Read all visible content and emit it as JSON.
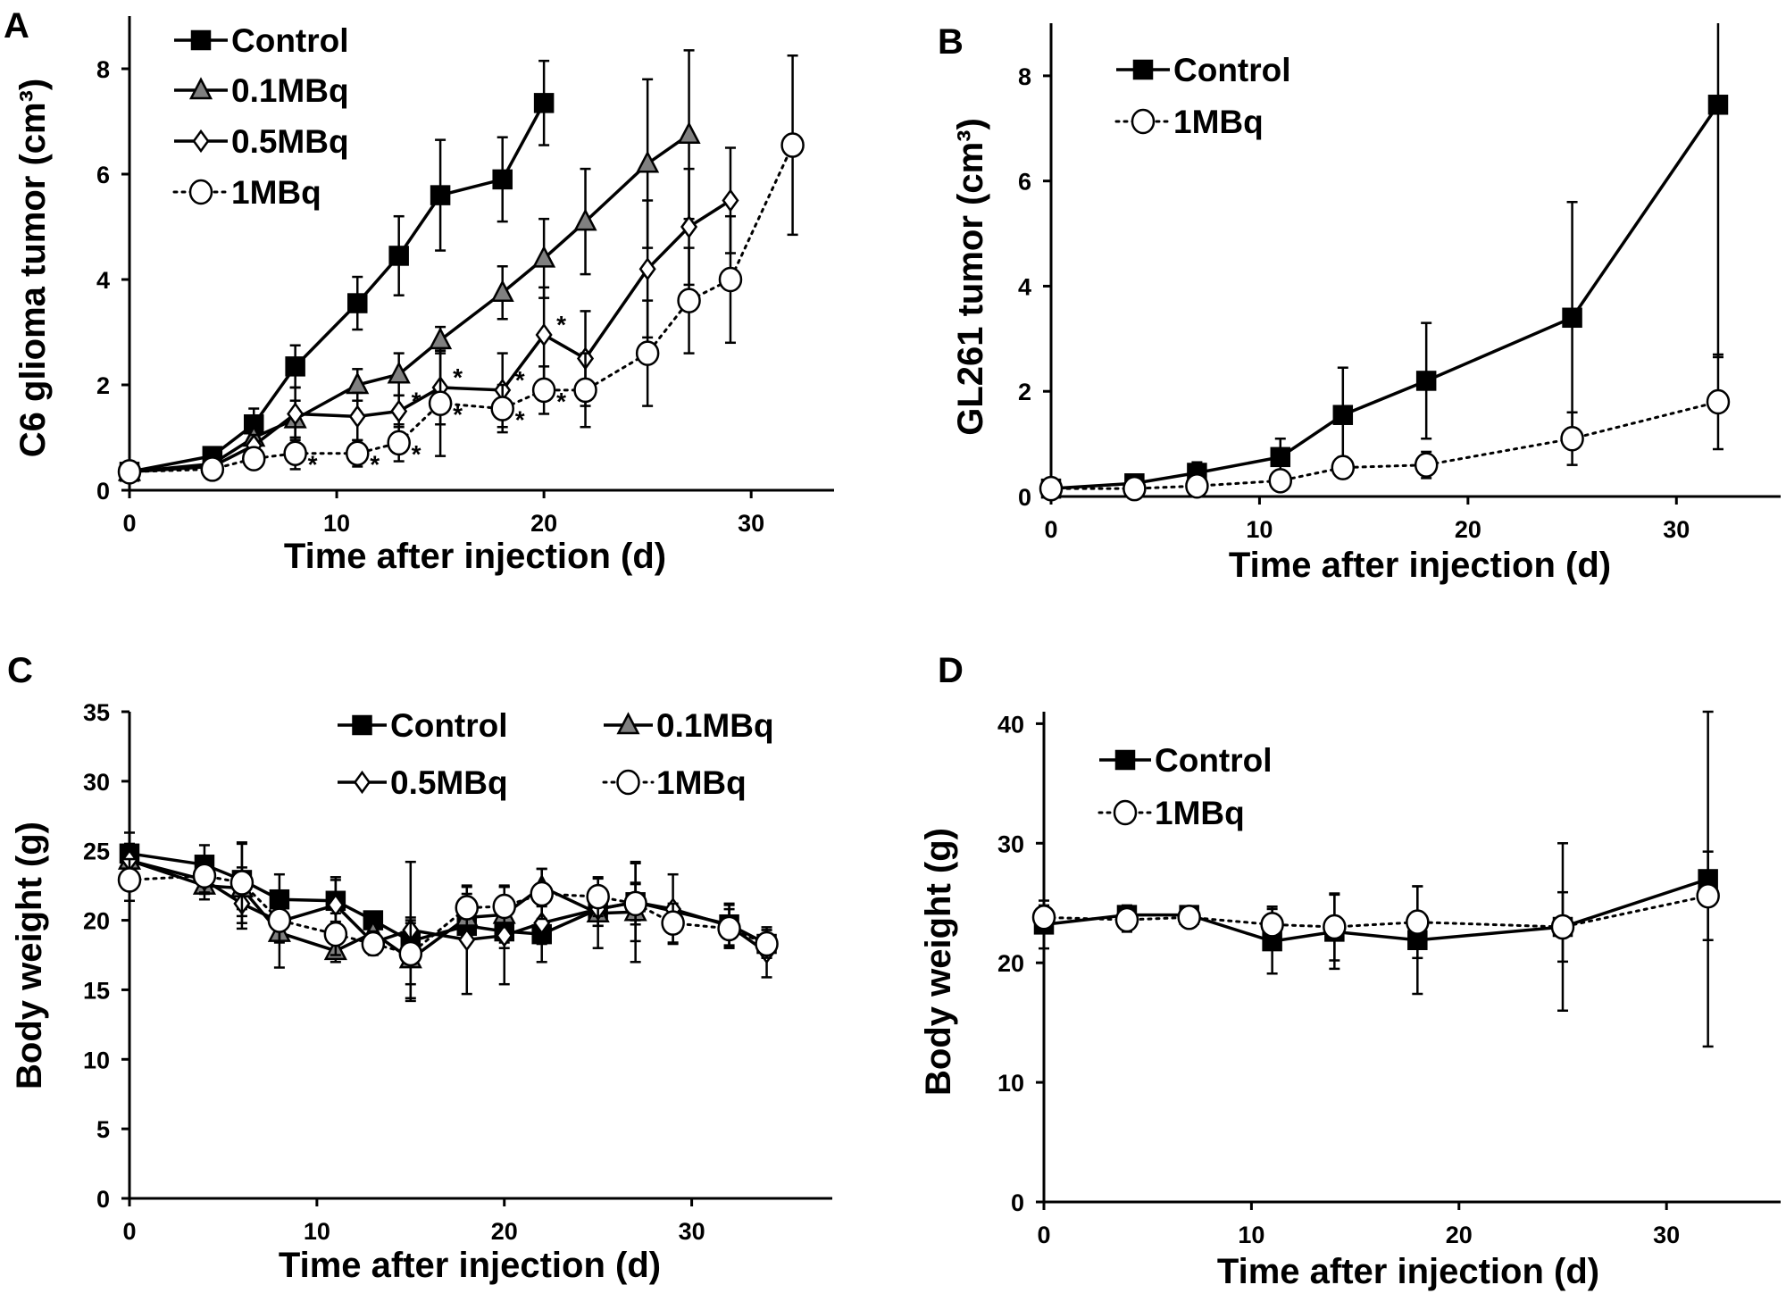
{
  "chart_data": [
    {
      "panel": "A",
      "type": "line",
      "title": "",
      "xlabel": "Time after injection (d)",
      "ylabel": "C6 glioma tumor (cm³)",
      "xlim": [
        0,
        34
      ],
      "ylim": [
        0,
        9
      ],
      "xticks": [
        0,
        10,
        20,
        30
      ],
      "yticks": [
        0,
        2,
        4,
        6,
        8
      ],
      "grid": false,
      "legend": "top-left",
      "series": [
        {
          "name": "Control",
          "marker": "square",
          "fill": "#000000",
          "line": "solid",
          "x": [
            0,
            4,
            6,
            8,
            11,
            13,
            15,
            18,
            20
          ],
          "y": [
            0.35,
            0.65,
            1.25,
            2.35,
            3.55,
            4.45,
            5.6,
            5.9,
            7.35
          ],
          "err": [
            0.1,
            0.15,
            0.3,
            0.4,
            0.5,
            0.75,
            1.05,
            0.8,
            0.8
          ]
        },
        {
          "name": "0.1MBq",
          "marker": "triangle",
          "fill": "#808080",
          "line": "solid",
          "x": [
            0,
            4,
            6,
            8,
            11,
            13,
            15,
            18,
            20,
            22,
            25,
            27
          ],
          "y": [
            0.35,
            0.5,
            1.0,
            1.35,
            2.0,
            2.2,
            2.85,
            3.75,
            4.4,
            5.1,
            6.2,
            6.75
          ],
          "err": [
            0.1,
            0.1,
            0.2,
            0.35,
            0.3,
            0.4,
            0.25,
            0.5,
            0.75,
            1.0,
            1.6,
            1.6
          ]
        },
        {
          "name": "0.5MBq",
          "marker": "diamond",
          "fill": "#ffffff",
          "line": "solid",
          "x": [
            0,
            4,
            6,
            8,
            11,
            13,
            15,
            18,
            20,
            22,
            25,
            27,
            29
          ],
          "y": [
            0.35,
            0.45,
            0.85,
            1.45,
            1.4,
            1.5,
            1.95,
            1.9,
            2.95,
            2.5,
            4.2,
            5.0,
            5.5
          ],
          "err": [
            0.1,
            0.1,
            0.2,
            0.5,
            0.45,
            0.3,
            0.7,
            0.7,
            0.9,
            0.9,
            1.3,
            1.1,
            1.0
          ]
        },
        {
          "name": "1MBq",
          "marker": "circle",
          "fill": "#ffffff",
          "line": "dotted",
          "x": [
            0,
            4,
            6,
            8,
            11,
            13,
            15,
            18,
            20,
            22,
            25,
            27,
            29,
            32
          ],
          "y": [
            0.35,
            0.4,
            0.6,
            0.7,
            0.7,
            0.9,
            1.65,
            1.55,
            1.9,
            1.9,
            2.6,
            3.6,
            4.0,
            6.55
          ],
          "err": [
            0.1,
            0.1,
            0.15,
            0.3,
            0.25,
            0.35,
            1.0,
            0.45,
            0.45,
            0.7,
            1.0,
            1.0,
            1.2,
            1.7
          ]
        }
      ],
      "annotations": [
        {
          "text": "*",
          "series": "1MBq",
          "x": 8
        },
        {
          "text": "*",
          "series": "1MBq",
          "x": 11
        },
        {
          "text": "*",
          "series": "1MBq",
          "x": 13
        },
        {
          "text": "*",
          "series": "1MBq",
          "x": 15
        },
        {
          "text": "*",
          "series": "1MBq",
          "x": 18
        },
        {
          "text": "*",
          "series": "1MBq",
          "x": 20
        },
        {
          "text": "*",
          "series": "0.5MBq",
          "x": 13
        },
        {
          "text": "*",
          "series": "0.5MBq",
          "x": 15
        },
        {
          "text": "*",
          "series": "0.5MBq",
          "x": 18
        },
        {
          "text": "*",
          "series": "0.5MBq",
          "x": 20
        }
      ]
    },
    {
      "panel": "B",
      "type": "line",
      "title": "",
      "xlabel": "Time after injection (d)",
      "ylabel": "GL261 tumor (cm³)",
      "xlim": [
        0,
        35
      ],
      "ylim": [
        0,
        9
      ],
      "xticks": [
        0,
        10,
        20,
        30
      ],
      "yticks": [
        0,
        2,
        4,
        6,
        8
      ],
      "grid": false,
      "legend": "top-left",
      "series": [
        {
          "name": "Control",
          "marker": "square",
          "fill": "#000000",
          "line": "solid",
          "x": [
            0,
            4,
            7,
            11,
            14,
            18,
            25,
            32
          ],
          "y": [
            0.15,
            0.25,
            0.45,
            0.75,
            1.55,
            2.2,
            3.4,
            7.45
          ],
          "err": [
            0.05,
            0.1,
            0.2,
            0.35,
            0.9,
            1.1,
            2.2,
            4.8
          ]
        },
        {
          "name": "1MBq",
          "marker": "circle",
          "fill": "#ffffff",
          "line": "dotted",
          "x": [
            0,
            4,
            7,
            11,
            14,
            18,
            25,
            32
          ],
          "y": [
            0.15,
            0.15,
            0.2,
            0.3,
            0.55,
            0.6,
            1.1,
            1.8
          ],
          "err": [
            0.05,
            0.05,
            0.05,
            0.1,
            0.2,
            0.25,
            0.5,
            0.9
          ]
        }
      ],
      "annotations": []
    },
    {
      "panel": "C",
      "type": "line",
      "title": "",
      "xlabel": "Time after injection (d)",
      "ylabel": "Body weight (g)",
      "xlim": [
        0,
        37.5
      ],
      "ylim": [
        0,
        35
      ],
      "xticks": [
        0,
        10,
        20,
        30
      ],
      "yticks": [
        0,
        5,
        10,
        15,
        20,
        25,
        30,
        35
      ],
      "grid": false,
      "legend": "top-right",
      "series": [
        {
          "name": "Control",
          "marker": "square",
          "fill": "#000000",
          "line": "solid",
          "x": [
            0,
            4,
            6,
            8,
            11,
            13,
            15,
            18,
            20,
            22,
            25,
            27,
            32,
            34
          ],
          "y": [
            24.8,
            24.0,
            22.9,
            21.5,
            21.4,
            20.0,
            18.5,
            19.6,
            19.2,
            19.0,
            20.8,
            21.3,
            19.7,
            18.3
          ],
          "err": [
            1.5,
            1.4,
            2.6,
            1.8,
            1.5,
            0.6,
            1.5,
            1.2,
            1.2,
            2.0,
            1.2,
            2.8,
            1.5,
            1.0
          ]
        },
        {
          "name": "0.1MBq",
          "marker": "triangle",
          "fill": "#808080",
          "line": "solid",
          "x": [
            0,
            4,
            6,
            8,
            11,
            13,
            15,
            18,
            20,
            22,
            25,
            27
          ],
          "y": [
            24.3,
            22.5,
            22.3,
            19.1,
            17.8,
            19.1,
            17.2,
            20.2,
            20.4,
            22.4,
            20.5,
            20.6
          ],
          "err": [
            1.2,
            1.0,
            1.5,
            2.5,
            0.8,
            0.8,
            3.0,
            1.7,
            2.0,
            1.3,
            2.5,
            3.6
          ]
        },
        {
          "name": "0.5MBq",
          "marker": "diamond",
          "fill": "#ffffff",
          "line": "solid",
          "x": [
            0,
            4,
            6,
            8,
            11,
            13,
            15,
            18,
            20,
            22,
            25,
            27,
            29,
            32,
            34
          ],
          "y": [
            24.3,
            22.9,
            21.2,
            19.9,
            21.1,
            18.4,
            19.3,
            18.6,
            18.9,
            19.8,
            20.8,
            21.3,
            20.8,
            19.6,
            17.7
          ],
          "err": [
            1.0,
            1.0,
            1.8,
            1.5,
            2.0,
            0.8,
            4.9,
            3.9,
            3.5,
            1.5,
            1.2,
            1.3,
            2.5,
            1.5,
            1.8
          ]
        },
        {
          "name": "1MBq",
          "marker": "circle",
          "fill": "#ffffff",
          "line": "dotted",
          "x": [
            0,
            4,
            6,
            8,
            11,
            13,
            15,
            18,
            20,
            22,
            25,
            27,
            29,
            32,
            34
          ],
          "y": [
            22.9,
            23.2,
            22.7,
            20.0,
            19.0,
            18.3,
            17.6,
            20.9,
            21.0,
            21.9,
            21.7,
            21.2,
            19.8,
            19.4,
            18.3
          ],
          "err": [
            1.5,
            1.2,
            2.9,
            1.5,
            1.5,
            0.8,
            2.2,
            1.5,
            1.5,
            1.8,
            1.4,
            1.5,
            1.4,
            1.4,
            1.0
          ]
        }
      ],
      "annotations": []
    },
    {
      "panel": "D",
      "type": "line",
      "title": "",
      "xlabel": "Time after injection (d)",
      "ylabel": "Body weight (g)",
      "xlim": [
        0,
        35.5
      ],
      "ylim": [
        0,
        41
      ],
      "xticks": [
        0,
        10,
        20,
        30
      ],
      "yticks": [
        0,
        10,
        20,
        30,
        40
      ],
      "grid": false,
      "legend": "top-left",
      "series": [
        {
          "name": "Control",
          "marker": "square",
          "fill": "#000000",
          "line": "solid",
          "x": [
            0,
            4,
            7,
            11,
            14,
            18,
            25,
            32
          ],
          "y": [
            23.2,
            24.0,
            24.0,
            21.8,
            22.6,
            21.9,
            23.0,
            27.0
          ],
          "err": [
            2.0,
            0.8,
            0.5,
            2.7,
            3.1,
            4.5,
            7.0,
            14.0
          ]
        },
        {
          "name": "1MBq",
          "marker": "circle",
          "fill": "#ffffff",
          "line": "dotted",
          "x": [
            0,
            4,
            7,
            11,
            14,
            18,
            25,
            32
          ],
          "y": [
            23.8,
            23.6,
            23.8,
            23.2,
            23.0,
            23.4,
            23.0,
            25.6
          ],
          "err": [
            1.0,
            1.0,
            0.6,
            1.5,
            2.8,
            3.0,
            2.9,
            3.7
          ]
        }
      ],
      "annotations": []
    }
  ]
}
